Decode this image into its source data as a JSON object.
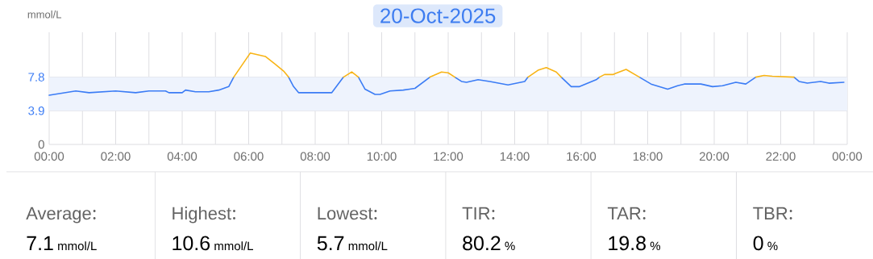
{
  "chart_data": [
    {
      "type": "line",
      "title": "20-Oct-2025",
      "ylabel": "mmol/L",
      "x": [
        0,
        0.8,
        1.2,
        2.0,
        2.6,
        3.0,
        3.5,
        3.6,
        4.0,
        4.1,
        4.4,
        4.8,
        5.1,
        5.4,
        5.55,
        6.05,
        6.5,
        6.8,
        7.05,
        7.2,
        7.35,
        7.5,
        8.5,
        8.85,
        9.1,
        9.3,
        9.5,
        9.8,
        9.95,
        10.25,
        10.65,
        11.0,
        11.45,
        11.8,
        12.0,
        12.2,
        12.4,
        12.55,
        12.9,
        13.25,
        13.8,
        14.3,
        14.4,
        14.7,
        14.95,
        15.25,
        15.4,
        15.7,
        15.95,
        16.45,
        16.55,
        16.7,
        16.95,
        17.35,
        17.75,
        18.1,
        18.6,
        18.9,
        19.1,
        19.6,
        19.95,
        20.25,
        20.65,
        20.95,
        21.25,
        21.5,
        21.75,
        22.4,
        22.55,
        22.8,
        23.2,
        23.45,
        23.9
      ],
      "series": [
        {
          "color": "#3b7cf5",
          "values": [
            5.7,
            6.2,
            6.0,
            6.2,
            6.0,
            6.2,
            6.2,
            6.0,
            6.0,
            6.3,
            6.1,
            6.1,
            6.3,
            6.7,
            7.8,
            null,
            null,
            null,
            null,
            7.8,
            6.7,
            6.0,
            6.0,
            7.8,
            null,
            7.8,
            6.4,
            5.8,
            5.8,
            6.2,
            6.3,
            6.5,
            7.8,
            null,
            null,
            7.8,
            7.3,
            7.2,
            7.5,
            7.3,
            6.9,
            7.3,
            7.8,
            null,
            null,
            null,
            7.8,
            6.7,
            6.7,
            7.5,
            7.8,
            null,
            null,
            null,
            7.8,
            7.0,
            6.4,
            6.8,
            7.0,
            7.0,
            6.7,
            6.8,
            7.2,
            7.0,
            7.8,
            null,
            null,
            7.8,
            7.3,
            7.1,
            7.3,
            7.1,
            7.2
          ]
        },
        {
          "color": "#f8b416",
          "values": [
            null,
            null,
            null,
            null,
            null,
            null,
            null,
            null,
            null,
            null,
            null,
            null,
            null,
            null,
            7.8,
            10.6,
            10.2,
            9.3,
            8.5,
            7.8,
            null,
            null,
            null,
            7.8,
            8.4,
            7.8,
            null,
            null,
            null,
            null,
            null,
            null,
            7.8,
            8.4,
            8.3,
            7.8,
            null,
            null,
            null,
            null,
            null,
            null,
            7.8,
            8.6,
            8.9,
            8.4,
            7.8,
            null,
            null,
            null,
            7.8,
            8.1,
            8.1,
            8.7,
            7.8,
            null,
            null,
            null,
            null,
            null,
            null,
            null,
            null,
            null,
            7.8,
            8.0,
            7.9,
            7.8,
            null,
            null,
            null,
            null,
            null
          ]
        }
      ],
      "xlim": [
        0,
        24
      ],
      "ylim": [
        0,
        13
      ],
      "xticks": [
        {
          "value": 0,
          "label": "00:00"
        },
        {
          "value": 1,
          "label": null
        },
        {
          "value": 2,
          "label": "02:00"
        },
        {
          "value": 3,
          "label": null
        },
        {
          "value": 4,
          "label": "04:00"
        },
        {
          "value": 5,
          "label": null
        },
        {
          "value": 6,
          "label": "06:00"
        },
        {
          "value": 7,
          "label": null
        },
        {
          "value": 8,
          "label": "08:00"
        },
        {
          "value": 9,
          "label": null
        },
        {
          "value": 10,
          "label": "10:00"
        },
        {
          "value": 11,
          "label": null
        },
        {
          "value": 12,
          "label": "12:00"
        },
        {
          "value": 13,
          "label": null
        },
        {
          "value": 14,
          "label": "14:00"
        },
        {
          "value": 15,
          "label": null
        },
        {
          "value": 16,
          "label": "16:00"
        },
        {
          "value": 17,
          "label": null
        },
        {
          "value": 18,
          "label": "18:00"
        },
        {
          "value": 19,
          "label": null
        },
        {
          "value": 20,
          "label": "20:00"
        },
        {
          "value": 21,
          "label": null
        },
        {
          "value": 22,
          "label": "22:00"
        },
        {
          "value": 23,
          "label": null
        },
        {
          "value": 24,
          "label": "00:00"
        }
      ],
      "yticks": [
        0,
        3.9,
        7.8
      ],
      "bands": [
        {
          "axis": "y",
          "from": 3.9,
          "to": 7.8,
          "color": "#eef3fd"
        }
      ],
      "grid": true,
      "marker": "none"
    },
    {
      "type": "other",
      "categories": [
        "Average",
        "Highest",
        "Lowest",
        "TIR",
        "TAR",
        "TBR"
      ],
      "values": [
        7.1,
        10.6,
        5.7,
        80.2,
        19.8,
        0
      ],
      "data_labels": true,
      "annotations": [
        "mmol/L",
        "mmol/L",
        "mmol/L",
        "%",
        "%",
        "%"
      ]
    }
  ]
}
